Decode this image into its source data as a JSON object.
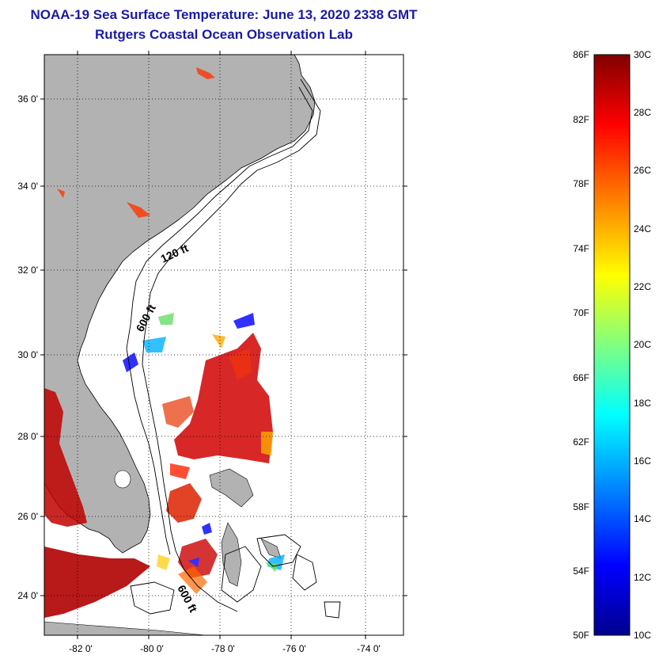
{
  "header": {
    "title": "NOAA-19 Sea Surface Temperature:  June 13, 2020 2338 GMT",
    "subtitle": "Rutgers Coastal Ocean Observation Lab"
  },
  "map": {
    "lat_labels": [
      "36 0'",
      "34 0'",
      "32 0'",
      "30 0'",
      "28 0'",
      "26 0'",
      "24 0'"
    ],
    "lon_labels": [
      "-82 0'",
      "-80 0'",
      "-78 0'",
      "-76 0'",
      "-74 0'"
    ],
    "contour_labels": [
      "120 ft",
      "600 ft",
      "600 ft"
    ],
    "land_color": "#b2b2b2"
  },
  "colorbar": {
    "fahrenheit": [
      "86F",
      "82F",
      "78F",
      "74F",
      "70F",
      "66F",
      "62F",
      "58F",
      "54F",
      "50F"
    ],
    "celsius": [
      "30C",
      "28C",
      "26C",
      "24C",
      "22C",
      "20C",
      "18C",
      "16C",
      "14C",
      "12C",
      "10C"
    ],
    "colors": [
      "#00008f",
      "#0000ff",
      "#00a0ff",
      "#00ffff",
      "#80ff80",
      "#ffff00",
      "#ff8000",
      "#ff0000",
      "#800000"
    ]
  }
}
